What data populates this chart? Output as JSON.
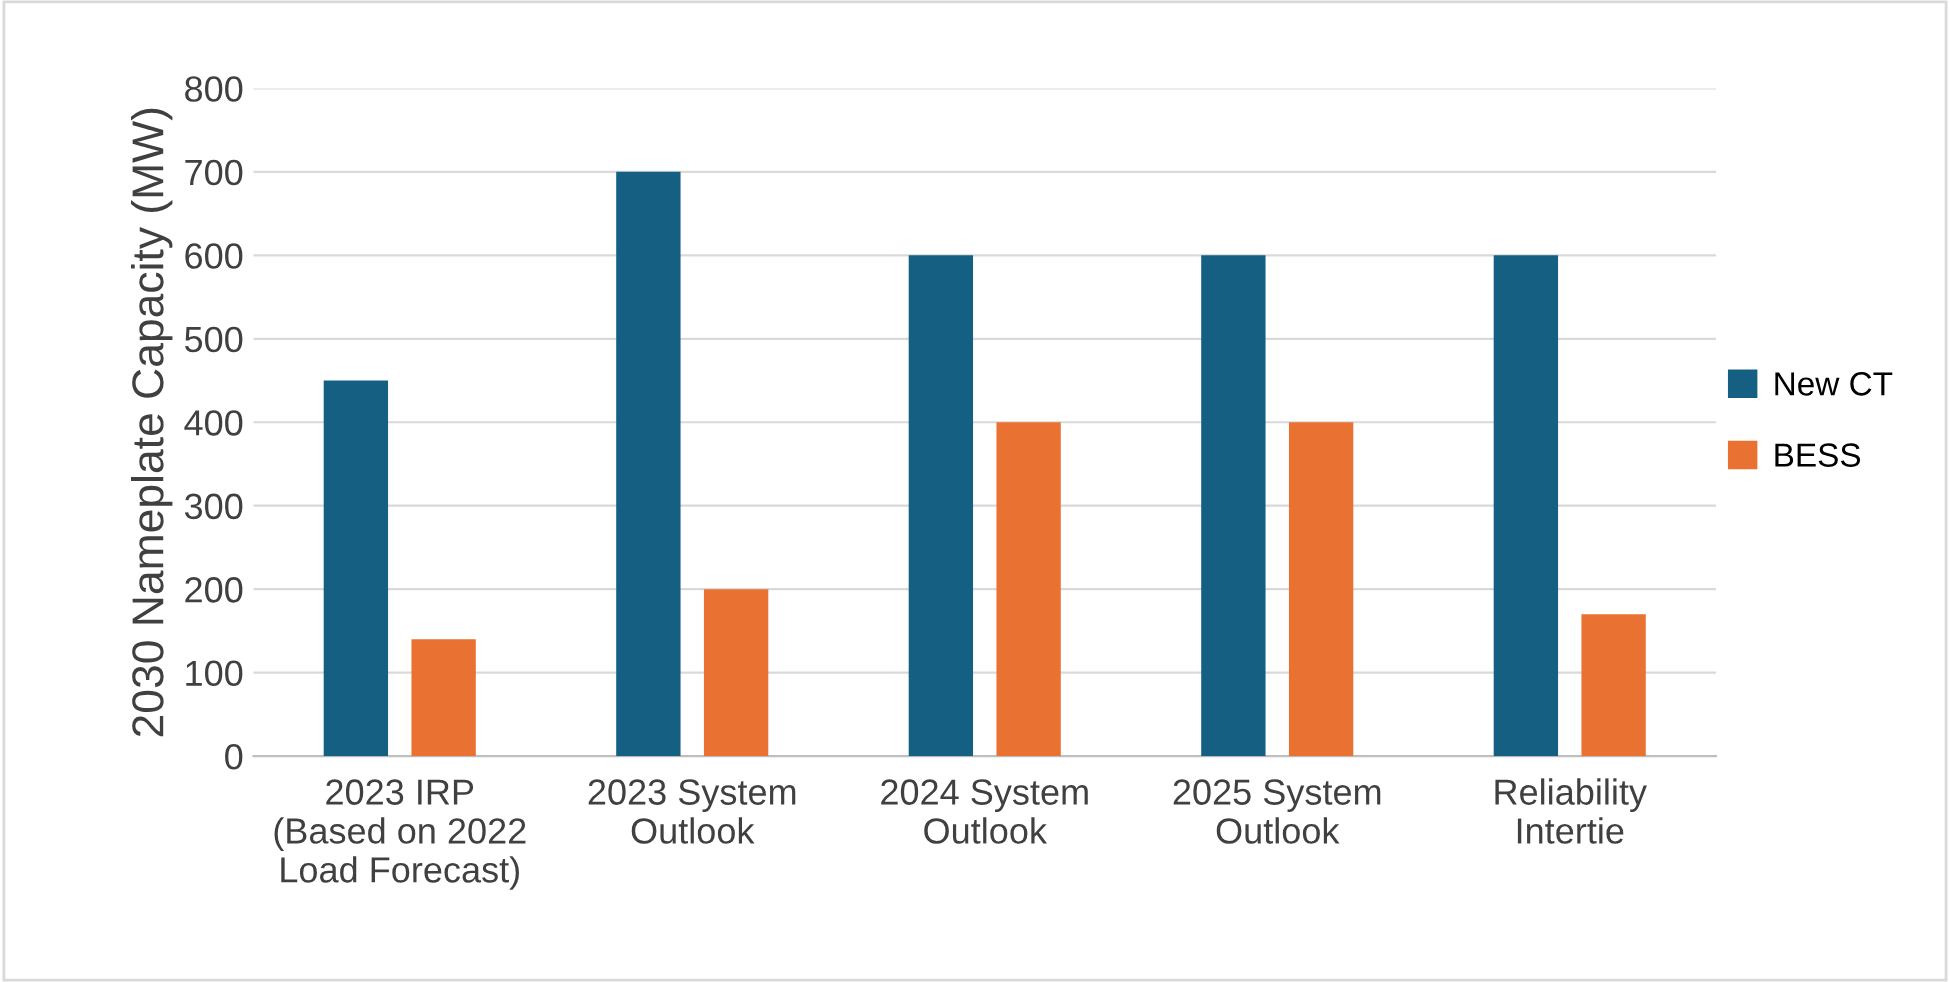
{
  "chart_data": {
    "type": "bar",
    "ylabel": "2030 Nameplate Capacity (MW)",
    "categories": [
      "2023 IRP\n(Based on 2022\nLoad Forecast)",
      "2023 System\nOutlook",
      "2024 System\nOutlook",
      "2025 System\nOutlook",
      "Reliability\nIntertie"
    ],
    "series": [
      {
        "name": "New CT",
        "color": "#156082",
        "values": [
          450,
          700,
          600,
          600,
          600
        ]
      },
      {
        "name": "BESS",
        "color": "#e97132",
        "values": [
          140,
          200,
          400,
          400,
          170
        ]
      }
    ],
    "ylim": [
      0,
      800
    ],
    "yticks": [
      0,
      100,
      200,
      300,
      400,
      500,
      600,
      700,
      800
    ],
    "grid": "y",
    "legend": "right"
  }
}
